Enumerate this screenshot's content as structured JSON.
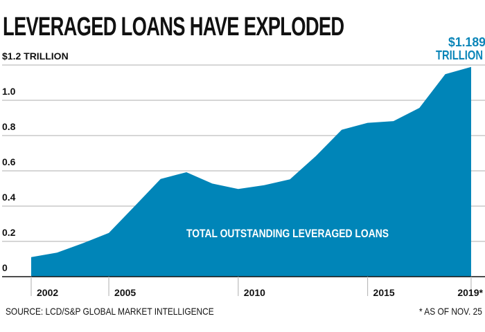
{
  "chart_data": {
    "type": "area",
    "title": "LEVERAGED LOANS HAVE EXPLODED",
    "x": [
      2002,
      2003,
      2004,
      2005,
      2006,
      2007,
      2008,
      2009,
      2010,
      2011,
      2012,
      2013,
      2014,
      2015,
      2016,
      2017,
      2018,
      2019
    ],
    "values": [
      0.111,
      0.136,
      0.19,
      0.248,
      0.4,
      0.554,
      0.592,
      0.528,
      0.497,
      0.519,
      0.552,
      0.684,
      0.833,
      0.872,
      0.882,
      0.957,
      1.148,
      1.189
    ],
    "xticks": [
      2002,
      2005,
      2010,
      2015,
      2019
    ],
    "xtick_labels": [
      "2002",
      "2005",
      "2010",
      "2015",
      "2019*"
    ],
    "yticks": [
      0,
      0.2,
      0.4,
      0.6,
      0.8,
      1.0,
      1.2
    ],
    "ytick_labels": [
      "0",
      "0.2",
      "0.4",
      "0.6",
      "0.8",
      "1.0",
      "$1.2 TRILLION"
    ],
    "ylim": [
      0,
      1.2
    ],
    "xlim": [
      2001,
      2019.5
    ],
    "grid": true,
    "area_label": "TOTAL OUTSTANDING LEVERAGED LOANS",
    "annotation_line1": "$1.189",
    "annotation_line2": "TRILLION",
    "color": "#0085b8",
    "annotation_color": "#0a85b8"
  },
  "footer": {
    "source": "SOURCE: LCD/S&P GLOBAL MARKET INTELLIGENCE",
    "note": "* AS OF NOV. 25"
  }
}
